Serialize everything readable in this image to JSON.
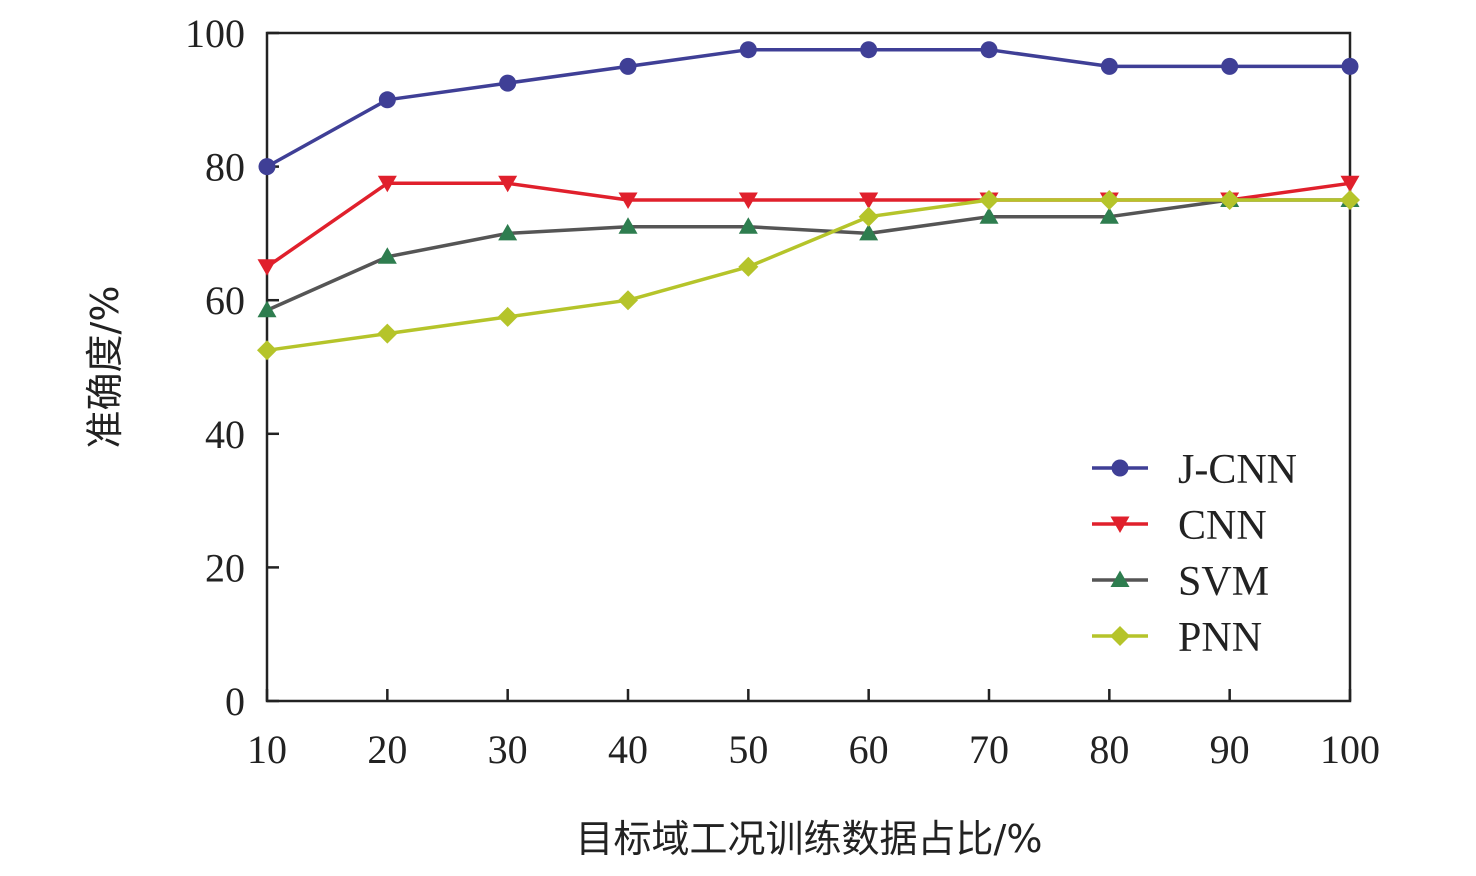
{
  "chart_data": {
    "type": "line",
    "title": "",
    "xlabel": "目标域工况训练数据占比/%",
    "ylabel": "准确度/%",
    "xlim": [
      10,
      100
    ],
    "ylim": [
      0,
      100
    ],
    "xticks": [
      10,
      20,
      30,
      40,
      50,
      60,
      70,
      80,
      90,
      100
    ],
    "yticks": [
      0,
      20,
      40,
      60,
      80,
      100
    ],
    "x": [
      10,
      20,
      30,
      40,
      50,
      60,
      70,
      80,
      90,
      100
    ],
    "grid": false,
    "legend_position": "bottom-right",
    "series": [
      {
        "name": "J-CNN",
        "marker": "circle",
        "color": "#3f3f96",
        "values": [
          80,
          90,
          92.5,
          95,
          97.5,
          97.5,
          97.5,
          95,
          95,
          95
        ]
      },
      {
        "name": "CNN",
        "marker": "triangle-down",
        "color": "#e0202c",
        "values": [
          65,
          77.5,
          77.5,
          75,
          75,
          75,
          75,
          75,
          75,
          77.5
        ]
      },
      {
        "name": "SVM",
        "marker": "triangle-up",
        "color": "#555555",
        "marker_color": "#2e7d4f",
        "values": [
          58.5,
          66.5,
          70,
          71,
          71,
          70,
          72.5,
          72.5,
          75,
          75
        ]
      },
      {
        "name": "PNN",
        "marker": "diamond",
        "color": "#b5c42a",
        "values": [
          52.5,
          55,
          57.5,
          60,
          65,
          72.5,
          75,
          75,
          75,
          75
        ]
      }
    ]
  }
}
